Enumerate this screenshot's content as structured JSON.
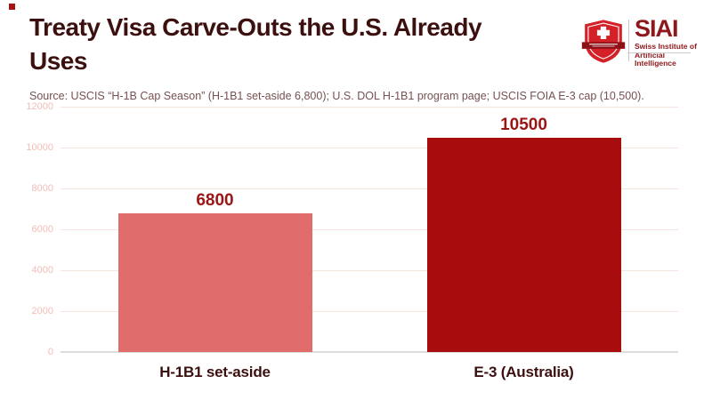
{
  "page": {
    "background": "#ffffff",
    "accent_color": "#a51212"
  },
  "header": {
    "title": "Treaty Visa Carve-Outs the U.S. Already Uses",
    "title_line1": "Treaty Visa Carve-Outs the U.S. Already",
    "title_line2": "Uses",
    "title_color": "#3d1010",
    "source": "Source: USCIS “H-1B Cap Season” (H-1B1 set-aside 6,800); U.S. DOL H-1B1 program page; USCIS FOIA E-3 cap (10,500)."
  },
  "logo": {
    "wordmark": "SIAI",
    "subtitle_line1": "Swiss Institute of",
    "subtitle_line2": "Artificial Intelligence",
    "shield_color": "#d42027",
    "banner_color": "#8c1016",
    "text_color": "#8e181c"
  },
  "chart_data": {
    "type": "bar",
    "title": "Treaty Visa Carve-Outs the U.S. Already Uses",
    "categories": [
      "H-1B1 set-aside",
      "E-3 (Australia)"
    ],
    "values": [
      6800,
      10500
    ],
    "data_labels": [
      "6800",
      "10500"
    ],
    "bar_colors": [
      "#e06c6c",
      "#a80c0c"
    ],
    "value_label_color": "#9c1515",
    "category_label_color": "#3d1010",
    "y_ticks": [
      0,
      2000,
      4000,
      6000,
      8000,
      10000,
      12000
    ],
    "ylim": [
      0,
      12000
    ],
    "xlabel": "",
    "ylabel": "",
    "grid": "horizontal",
    "gridline_color": "#f7e3e0",
    "axis_line_color": "#dcdcdc",
    "tick_label_color": "#f2bdb6",
    "legend": "none"
  }
}
